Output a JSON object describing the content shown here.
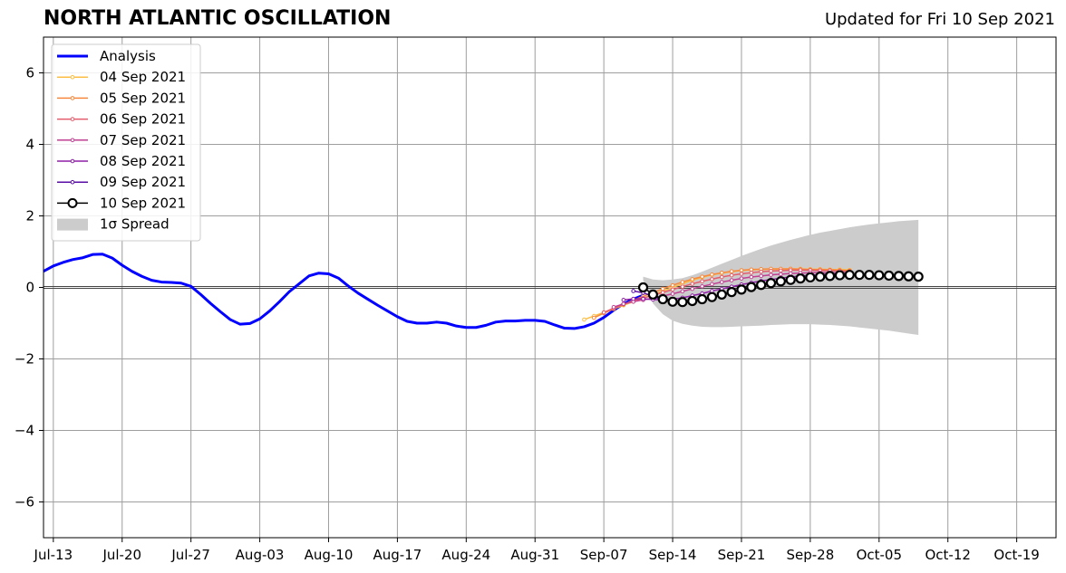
{
  "chart_data": {
    "type": "line",
    "title": "NORTH ATLANTIC OSCILLATION",
    "subtitle": "Updated for Fri 10 Sep 2021",
    "x_ticks": [
      "Jul-13",
      "Jul-20",
      "Jul-27",
      "Aug-03",
      "Aug-10",
      "Aug-17",
      "Aug-24",
      "Aug-31",
      "Sep-07",
      "Sep-14",
      "Sep-21",
      "Sep-28",
      "Oct-05",
      "Oct-12",
      "Oct-19"
    ],
    "xlim": [
      "2021-07-12",
      "2021-10-23"
    ],
    "ylim": [
      -7,
      7
    ],
    "y_ticks": [
      -6,
      -4,
      -2,
      0,
      2,
      4,
      6
    ],
    "grid": true,
    "legend_position": "top-left",
    "analysis": {
      "name": "Analysis",
      "color": "#0000ff",
      "start_date": "2021-07-12",
      "values": [
        0.45,
        0.6,
        0.7,
        0.78,
        0.83,
        0.92,
        0.93,
        0.82,
        0.62,
        0.45,
        0.31,
        0.2,
        0.15,
        0.14,
        0.12,
        0.03,
        -0.2,
        -0.45,
        -0.68,
        -0.9,
        -1.03,
        -1.01,
        -0.88,
        -0.66,
        -0.4,
        -0.12,
        0.1,
        0.32,
        0.4,
        0.38,
        0.26,
        0.04,
        -0.16,
        -0.33,
        -0.5,
        -0.66,
        -0.82,
        -0.95,
        -1.0,
        -1.0,
        -0.97,
        -1.0,
        -1.08,
        -1.12,
        -1.12,
        -1.06,
        -0.97,
        -0.94,
        -0.94,
        -0.92,
        -0.92,
        -0.95,
        -1.05,
        -1.14,
        -1.15,
        -1.1,
        -1.0,
        -0.84,
        -0.64,
        -0.46,
        -0.33,
        -0.22
      ]
    },
    "forecasts": [
      {
        "name": "04 Sep 2021",
        "color": "#fcbe45",
        "start_date": "2021-09-05",
        "values": [
          -0.9,
          -0.8,
          -0.7,
          -0.6,
          -0.5,
          -0.4,
          -0.3,
          -0.2,
          -0.1,
          0.0,
          0.1,
          0.2,
          0.28,
          0.35,
          0.4,
          0.44,
          0.47,
          0.49,
          0.5,
          0.51,
          0.51,
          0.52,
          0.52,
          0.51,
          0.51,
          0.5,
          0.5,
          0.49
        ]
      },
      {
        "name": "05 Sep 2021",
        "color": "#f7883d",
        "start_date": "2021-09-06",
        "values": [
          -0.85,
          -0.72,
          -0.6,
          -0.48,
          -0.36,
          -0.25,
          -0.14,
          -0.04,
          0.06,
          0.15,
          0.23,
          0.3,
          0.36,
          0.41,
          0.45,
          0.48,
          0.5,
          0.51,
          0.52,
          0.52,
          0.52,
          0.51,
          0.5,
          0.5,
          0.49,
          0.48,
          0.47
        ]
      },
      {
        "name": "06 Sep 2021",
        "color": "#e45c6b",
        "start_date": "2021-09-07",
        "values": [
          -0.7,
          -0.58,
          -0.47,
          -0.38,
          -0.3,
          -0.22,
          -0.14,
          -0.06,
          0.02,
          0.1,
          0.17,
          0.23,
          0.29,
          0.34,
          0.38,
          0.41,
          0.44,
          0.46,
          0.47,
          0.48,
          0.48,
          0.48,
          0.47,
          0.47,
          0.46,
          0.45
        ]
      },
      {
        "name": "07 Sep 2021",
        "color": "#c13f93",
        "start_date": "2021-09-08",
        "values": [
          -0.55,
          -0.46,
          -0.4,
          -0.35,
          -0.3,
          -0.24,
          -0.18,
          -0.11,
          -0.04,
          0.03,
          0.09,
          0.15,
          0.2,
          0.25,
          0.29,
          0.32,
          0.35,
          0.37,
          0.39,
          0.4,
          0.41,
          0.41,
          0.41,
          0.41,
          0.41
        ]
      },
      {
        "name": "08 Sep 2021",
        "color": "#8e1fa5",
        "start_date": "2021-09-09",
        "values": [
          -0.35,
          -0.32,
          -0.32,
          -0.34,
          -0.35,
          -0.33,
          -0.29,
          -0.23,
          -0.17,
          -0.1,
          -0.04,
          0.02,
          0.08,
          0.13,
          0.18,
          0.22,
          0.26,
          0.29,
          0.32,
          0.34,
          0.36,
          0.37,
          0.38,
          0.38
        ]
      },
      {
        "name": "09 Sep 2021",
        "color": "#5a0ca6",
        "start_date": "2021-09-10",
        "values": [
          -0.1,
          -0.15,
          -0.25,
          -0.35,
          -0.4,
          -0.42,
          -0.4,
          -0.35,
          -0.28,
          -0.21,
          -0.14,
          -0.07,
          -0.01,
          0.05,
          0.1,
          0.15,
          0.19,
          0.23,
          0.26,
          0.28,
          0.3,
          0.31,
          0.32
        ]
      },
      {
        "name": "10 Sep 2021",
        "color": "#000000",
        "start_date": "2021-09-11",
        "values": [
          0.0,
          -0.2,
          -0.33,
          -0.4,
          -0.41,
          -0.38,
          -0.33,
          -0.27,
          -0.2,
          -0.13,
          -0.06,
          0.01,
          0.07,
          0.12,
          0.17,
          0.21,
          0.25,
          0.28,
          0.3,
          0.32,
          0.34,
          0.35,
          0.35,
          0.35,
          0.34,
          0.33,
          0.32,
          0.31,
          0.3
        ]
      }
    ],
    "spread": {
      "name": "1σ Spread",
      "color": "#cccccc",
      "start_date": "2021-09-11",
      "upper": [
        0.3,
        0.22,
        0.2,
        0.22,
        0.26,
        0.34,
        0.44,
        0.55,
        0.66,
        0.77,
        0.88,
        0.98,
        1.08,
        1.17,
        1.25,
        1.33,
        1.4,
        1.47,
        1.53,
        1.58,
        1.63,
        1.68,
        1.72,
        1.76,
        1.79,
        1.82,
        1.85,
        1.87,
        1.89
      ],
      "lower": [
        0.2,
        -0.45,
        -0.75,
        -0.93,
        -1.02,
        -1.07,
        -1.1,
        -1.11,
        -1.11,
        -1.1,
        -1.09,
        -1.08,
        -1.07,
        -1.05,
        -1.04,
        -1.03,
        -1.03,
        -1.03,
        -1.04,
        -1.05,
        -1.07,
        -1.09,
        -1.12,
        -1.15,
        -1.18,
        -1.21,
        -1.25,
        -1.29,
        -1.33
      ]
    }
  }
}
